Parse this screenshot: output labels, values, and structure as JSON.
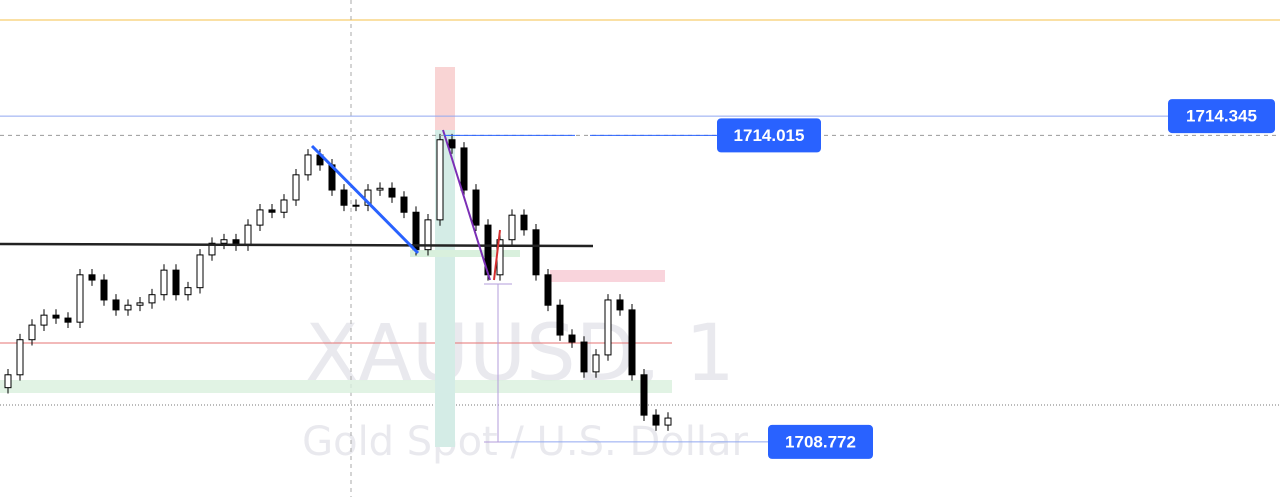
{
  "chart_data": {
    "type": "candlestick",
    "watermark": "XAUUSD, 1",
    "watermark_subtitle": "Gold Spot / U.S. Dollar",
    "ylim": [
      1707.83,
      1716.33
    ],
    "up_color": "#ffffff",
    "down_color": "#000000",
    "open": [
      1709.7,
      1709.92,
      1710.52,
      1710.77,
      1710.94,
      1710.89,
      1710.82,
      1711.63,
      1711.54,
      1711.2,
      1711.03,
      1711.11,
      1711.15,
      1711.29,
      1711.71,
      1711.29,
      1711.41,
      1711.97,
      1712.17,
      1712.23,
      1712.14,
      1712.48,
      1712.74,
      1712.7,
      1712.91,
      1713.34,
      1713.68,
      1713.51,
      1713.08,
      1712.82,
      1712.82,
      1713.08,
      1713.11,
      1712.96,
      1712.7,
      1712.06,
      1712.57,
      1713.94,
      1713.8,
      1713.08,
      1712.48,
      1711.63,
      1712.23,
      1712.65,
      1712.4,
      1711.63,
      1711.11,
      1710.6,
      1710.48,
      1709.97,
      1710.26,
      1711.2,
      1711.03,
      1709.92,
      1709.23,
      1709.06
    ],
    "high": [
      1710.02,
      1710.62,
      1710.87,
      1711.04,
      1711.04,
      1710.99,
      1711.73,
      1711.73,
      1711.64,
      1711.3,
      1711.21,
      1711.25,
      1711.39,
      1711.81,
      1711.81,
      1711.51,
      1712.07,
      1712.27,
      1712.33,
      1712.33,
      1712.58,
      1712.84,
      1712.84,
      1713.01,
      1713.44,
      1713.78,
      1713.78,
      1713.61,
      1713.18,
      1712.92,
      1713.18,
      1713.21,
      1713.21,
      1713.06,
      1712.8,
      1712.67,
      1714.04,
      1714.04,
      1713.9,
      1713.18,
      1712.58,
      1712.33,
      1712.75,
      1712.75,
      1712.5,
      1711.73,
      1711.21,
      1710.7,
      1710.58,
      1710.36,
      1711.3,
      1711.3,
      1711.13,
      1710.02,
      1709.33,
      1709.28
    ],
    "low": [
      1709.6,
      1709.82,
      1710.42,
      1710.67,
      1710.79,
      1710.72,
      1710.72,
      1711.44,
      1711.1,
      1710.93,
      1710.93,
      1711.01,
      1711.05,
      1711.19,
      1711.19,
      1711.19,
      1711.31,
      1711.87,
      1712.07,
      1712.04,
      1712.04,
      1712.38,
      1712.6,
      1712.6,
      1712.81,
      1713.24,
      1713.41,
      1712.98,
      1712.72,
      1712.72,
      1712.72,
      1712.98,
      1712.86,
      1712.6,
      1711.96,
      1711.96,
      1712.47,
      1713.7,
      1712.98,
      1712.38,
      1711.53,
      1711.53,
      1712.13,
      1712.3,
      1711.53,
      1711.01,
      1710.5,
      1710.38,
      1709.87,
      1709.87,
      1710.16,
      1710.93,
      1709.82,
      1709.13,
      1708.96,
      1708.96
    ],
    "close": [
      1709.92,
      1710.52,
      1710.77,
      1710.94,
      1710.89,
      1710.82,
      1711.63,
      1711.54,
      1711.2,
      1711.03,
      1711.11,
      1711.15,
      1711.29,
      1711.71,
      1711.29,
      1711.41,
      1711.97,
      1712.17,
      1712.23,
      1712.14,
      1712.48,
      1712.74,
      1712.7,
      1712.91,
      1713.34,
      1713.68,
      1713.51,
      1713.08,
      1712.82,
      1712.82,
      1713.08,
      1713.11,
      1712.96,
      1712.7,
      1712.06,
      1712.57,
      1713.94,
      1713.8,
      1713.08,
      1712.48,
      1711.63,
      1712.23,
      1712.65,
      1712.4,
      1711.63,
      1711.11,
      1710.6,
      1710.48,
      1709.97,
      1710.26,
      1711.2,
      1711.03,
      1709.92,
      1709.23,
      1709.06,
      1709.18
    ],
    "price_lines": [
      {
        "value": 1714.345,
        "color": "#2962ff"
      },
      {
        "value": 1714.015,
        "color": "#2962ff"
      },
      {
        "value": 1708.772,
        "color": "#2962ff"
      }
    ]
  }
}
